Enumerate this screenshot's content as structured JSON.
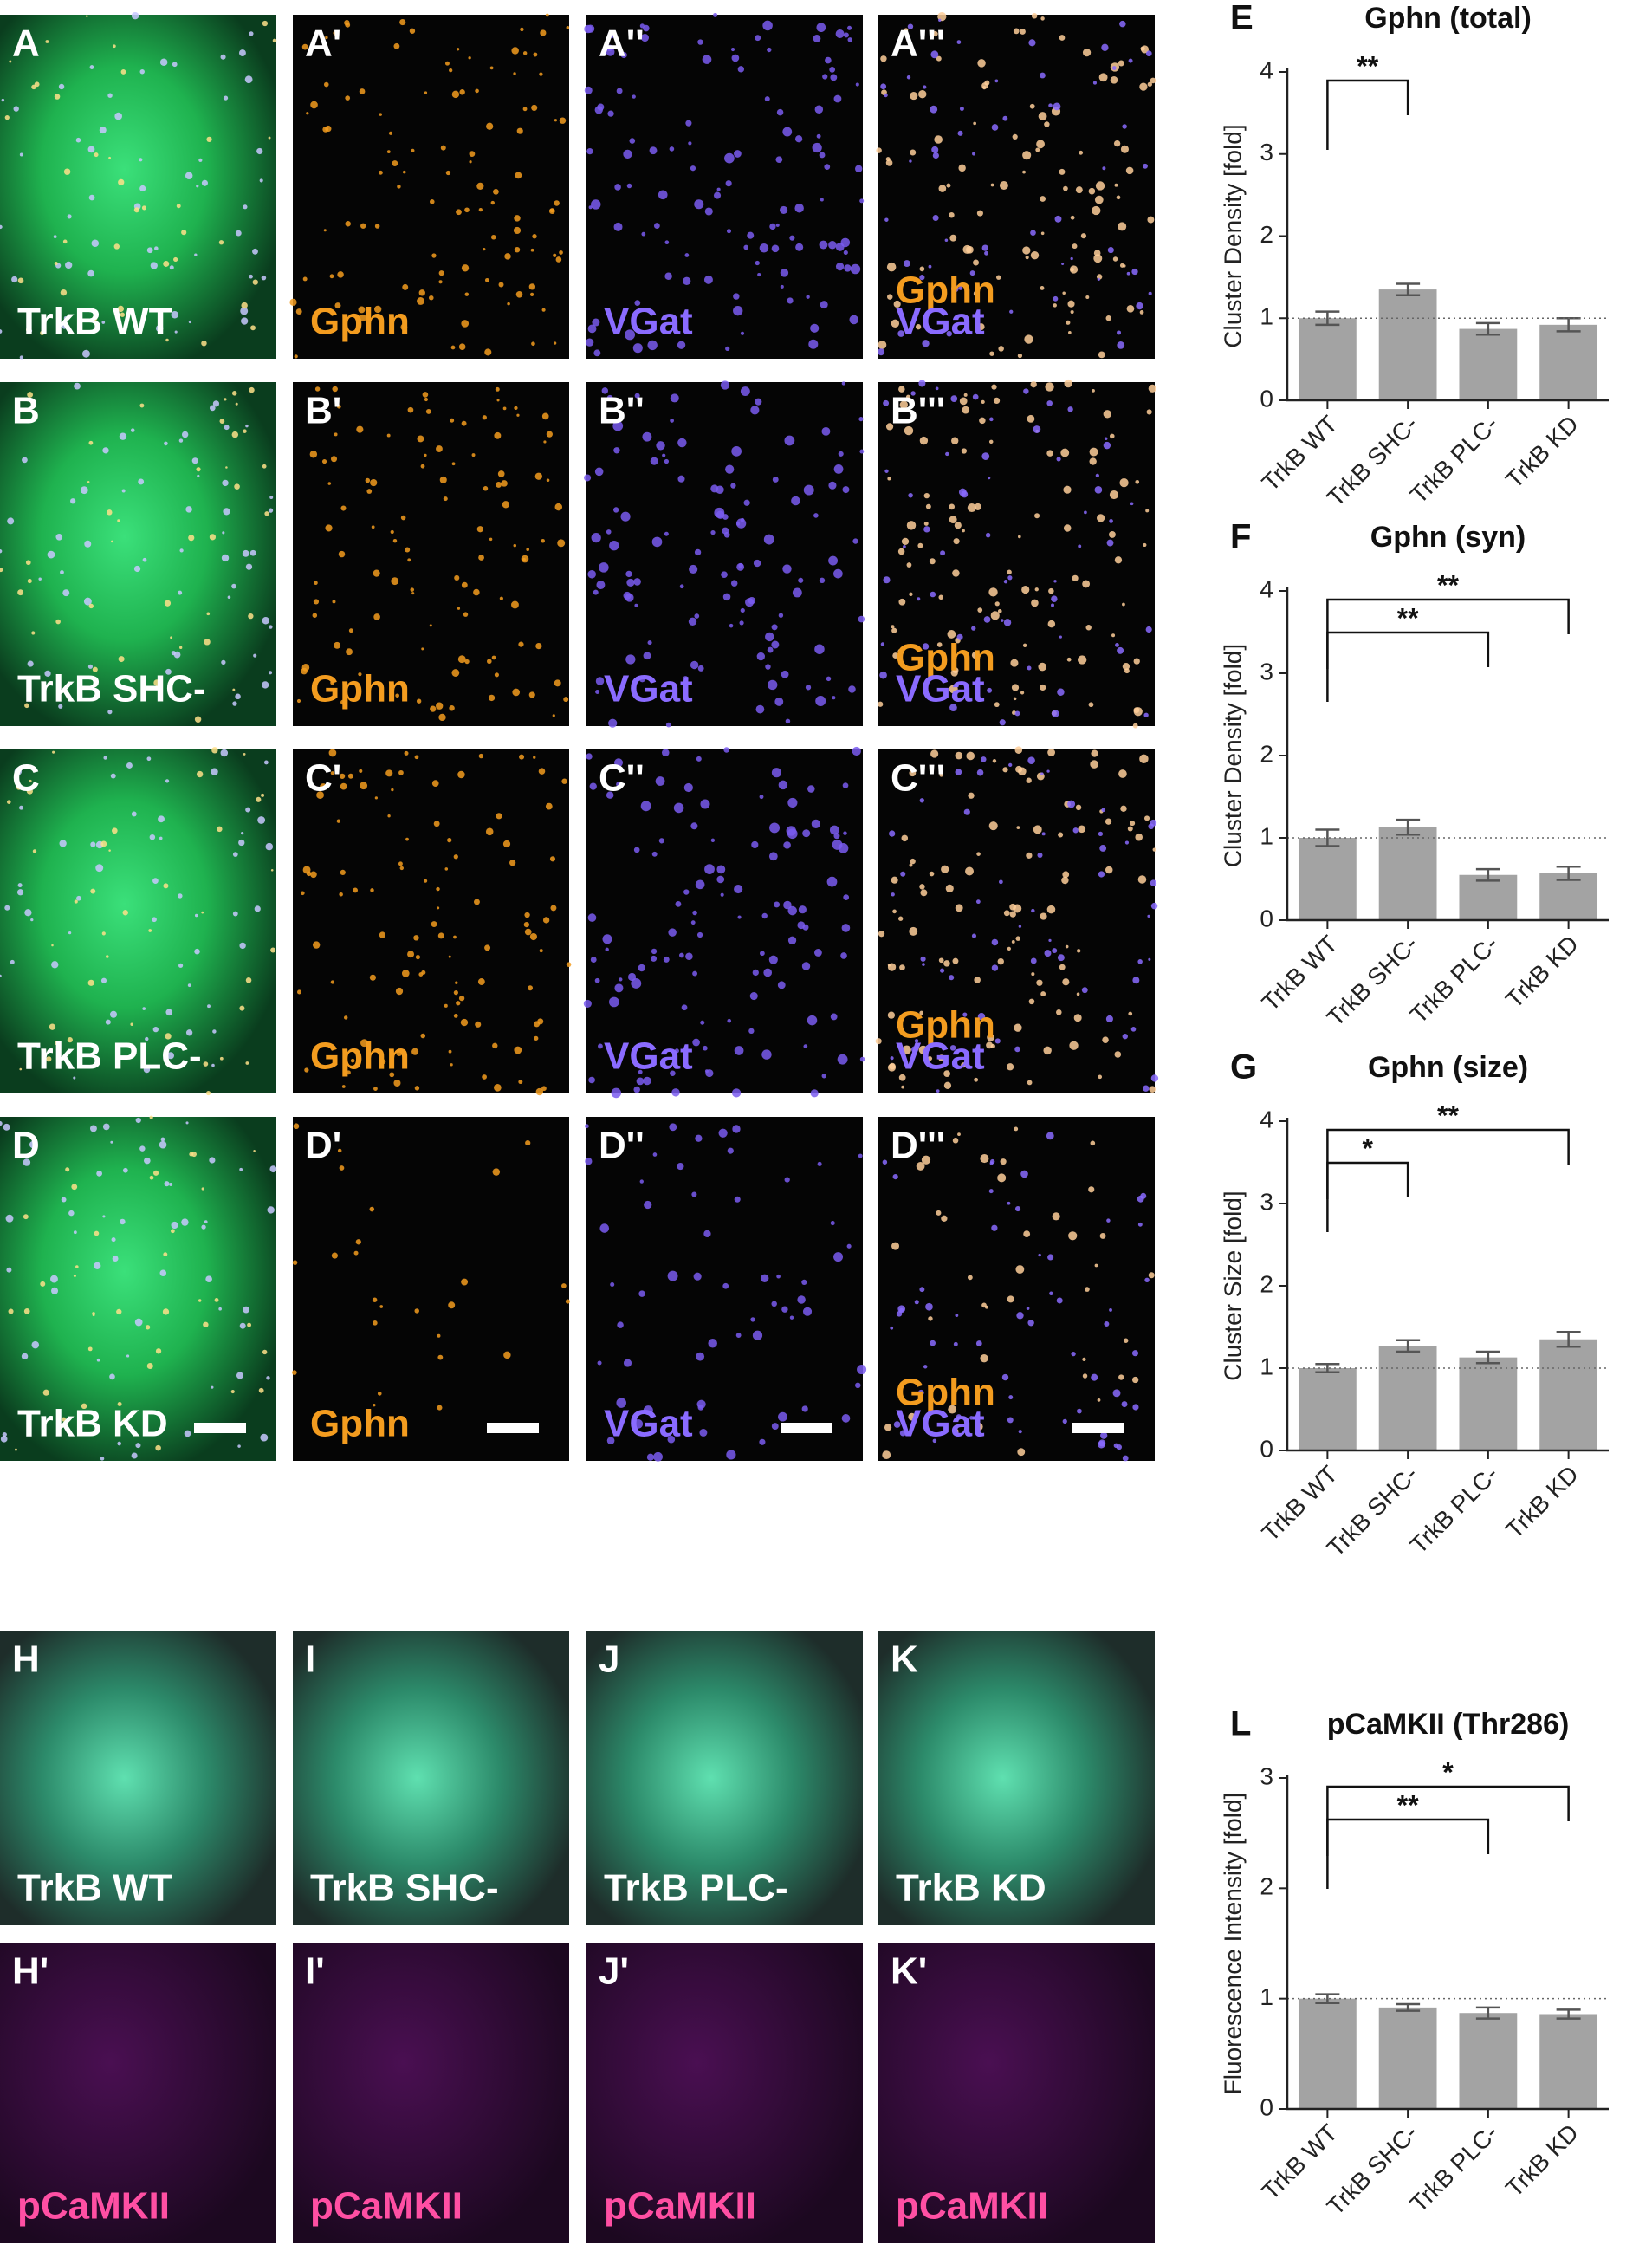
{
  "micrographs": {
    "top_rows": [
      {
        "panels": [
          {
            "letter": "A",
            "labels": [
              {
                "text": "TrkB WT",
                "color": "#ffffff"
              }
            ]
          },
          {
            "letter": "A'",
            "labels": [
              {
                "text": "Gphn",
                "color": "#f39c1f"
              }
            ]
          },
          {
            "letter": "A''",
            "labels": [
              {
                "text": "VGat",
                "color": "#8a6bff"
              }
            ]
          },
          {
            "letter": "A'''",
            "labels": [
              {
                "text": "Gphn",
                "color": "#f39c1f"
              },
              {
                "text": "VGat",
                "color": "#8a6bff"
              }
            ]
          }
        ]
      },
      {
        "panels": [
          {
            "letter": "B",
            "labels": [
              {
                "text": "TrkB SHC-",
                "color": "#ffffff"
              }
            ]
          },
          {
            "letter": "B'",
            "labels": [
              {
                "text": "Gphn",
                "color": "#f39c1f"
              }
            ]
          },
          {
            "letter": "B''",
            "labels": [
              {
                "text": "VGat",
                "color": "#8a6bff"
              }
            ]
          },
          {
            "letter": "B'''",
            "labels": [
              {
                "text": "Gphn",
                "color": "#f39c1f"
              },
              {
                "text": "VGat",
                "color": "#8a6bff"
              }
            ]
          }
        ]
      },
      {
        "panels": [
          {
            "letter": "C",
            "labels": [
              {
                "text": "TrkB PLC-",
                "color": "#ffffff"
              }
            ]
          },
          {
            "letter": "C'",
            "labels": [
              {
                "text": "Gphn",
                "color": "#f39c1f"
              }
            ]
          },
          {
            "letter": "C''",
            "labels": [
              {
                "text": "VGat",
                "color": "#8a6bff"
              }
            ]
          },
          {
            "letter": "C'''",
            "labels": [
              {
                "text": "Gphn",
                "color": "#f39c1f"
              },
              {
                "text": "VGat",
                "color": "#8a6bff"
              }
            ]
          }
        ]
      },
      {
        "panels": [
          {
            "letter": "D",
            "labels": [
              {
                "text": "TrkB KD",
                "color": "#ffffff"
              }
            ]
          },
          {
            "letter": "D'",
            "labels": [
              {
                "text": "Gphn",
                "color": "#f39c1f"
              }
            ]
          },
          {
            "letter": "D''",
            "labels": [
              {
                "text": "VGat",
                "color": "#8a6bff"
              }
            ]
          },
          {
            "letter": "D'''",
            "labels": [
              {
                "text": "Gphn",
                "color": "#f39c1f"
              },
              {
                "text": "VGat",
                "color": "#8a6bff"
              }
            ]
          }
        ]
      }
    ],
    "bottom_rows": [
      {
        "panels": [
          {
            "letter": "H",
            "labels": [
              {
                "text": "TrkB WT",
                "color": "#ffffff"
              }
            ]
          },
          {
            "letter": "I",
            "labels": [
              {
                "text": "TrkB SHC-",
                "color": "#ffffff"
              }
            ]
          },
          {
            "letter": "J",
            "labels": [
              {
                "text": "TrkB PLC-",
                "color": "#ffffff"
              }
            ]
          },
          {
            "letter": "K",
            "labels": [
              {
                "text": "TrkB KD",
                "color": "#ffffff"
              }
            ]
          }
        ]
      },
      {
        "panels": [
          {
            "letter": "H'",
            "labels": [
              {
                "text": "pCaMKII",
                "color": "#ff4fa3"
              }
            ]
          },
          {
            "letter": "I'",
            "labels": [
              {
                "text": "pCaMKII",
                "color": "#ff4fa3"
              }
            ]
          },
          {
            "letter": "J'",
            "labels": [
              {
                "text": "pCaMKII",
                "color": "#ff4fa3"
              }
            ]
          },
          {
            "letter": "K'",
            "labels": [
              {
                "text": "pCaMKII",
                "color": "#ff4fa3"
              }
            ]
          }
        ]
      }
    ]
  },
  "chart_data": [
    {
      "type": "bar",
      "panel": "E",
      "title": "Gphn (total)",
      "ylabel": "Cluster Density [fold]",
      "categories": [
        "TrkB WT",
        "TrkB SHC-",
        "TrkB PLC-",
        "TrkB KD"
      ],
      "values": [
        1.0,
        1.35,
        0.87,
        0.92
      ],
      "errors": [
        0.08,
        0.07,
        0.07,
        0.08
      ],
      "color": "#a3a3a3",
      "ylim": [
        0,
        4
      ],
      "yticks": [
        0,
        1,
        2,
        3,
        4
      ],
      "reference_line": 1,
      "significance": [
        {
          "from": 0,
          "to": 1,
          "label": "**"
        }
      ]
    },
    {
      "type": "bar",
      "panel": "F",
      "title": "Gphn (syn)",
      "ylabel": "Cluster Density [fold]",
      "categories": [
        "TrkB WT",
        "TrkB SHC-",
        "TrkB PLC-",
        "TrkB KD"
      ],
      "values": [
        1.0,
        1.13,
        0.55,
        0.57
      ],
      "errors": [
        0.1,
        0.09,
        0.07,
        0.08
      ],
      "color": "#a3a3a3",
      "ylim": [
        0,
        4
      ],
      "yticks": [
        0,
        1,
        2,
        3,
        4
      ],
      "reference_line": 1,
      "significance": [
        {
          "from": 0,
          "to": 2,
          "label": "**"
        },
        {
          "from": 0,
          "to": 3,
          "label": "**"
        }
      ]
    },
    {
      "type": "bar",
      "panel": "G",
      "title": "Gphn (size)",
      "ylabel": "Cluster Size [fold]",
      "categories": [
        "TrkB WT",
        "TrkB SHC-",
        "TrkB PLC-",
        "TrkB KD"
      ],
      "values": [
        1.0,
        1.27,
        1.13,
        1.35
      ],
      "errors": [
        0.05,
        0.07,
        0.07,
        0.09
      ],
      "color": "#a3a3a3",
      "ylim": [
        0,
        4
      ],
      "yticks": [
        0,
        1,
        2,
        3,
        4
      ],
      "reference_line": 1,
      "significance": [
        {
          "from": 0,
          "to": 1,
          "label": "*"
        },
        {
          "from": 0,
          "to": 3,
          "label": "**"
        }
      ]
    },
    {
      "type": "bar",
      "panel": "L",
      "title": "pCaMKII (Thr286)",
      "ylabel": "Fluorescence Intensity [fold]",
      "categories": [
        "TrkB WT",
        "TrkB SHC-",
        "TrkB PLC-",
        "TrkB KD"
      ],
      "values": [
        1.0,
        0.92,
        0.87,
        0.86
      ],
      "errors": [
        0.04,
        0.03,
        0.05,
        0.04
      ],
      "color": "#a3a3a3",
      "ylim": [
        0,
        3
      ],
      "yticks": [
        0,
        1,
        2,
        3
      ],
      "reference_line": 1,
      "significance": [
        {
          "from": 0,
          "to": 2,
          "label": "**"
        },
        {
          "from": 0,
          "to": 3,
          "label": "*"
        }
      ]
    }
  ]
}
